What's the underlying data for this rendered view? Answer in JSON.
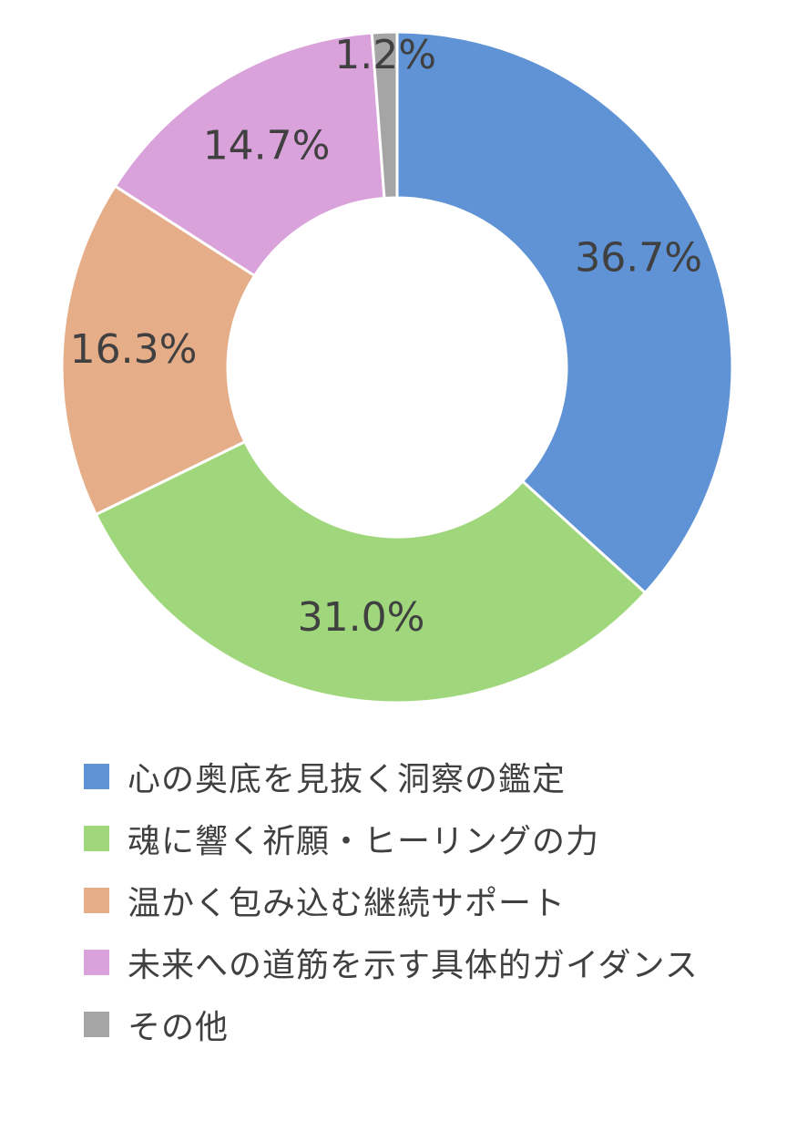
{
  "chart_data": {
    "type": "pie",
    "donut": true,
    "legend_position": "bottom",
    "slices": [
      {
        "name": "心の奥底を見抜く洞察の鑑定",
        "value": 36.7,
        "label": "36.7%",
        "color": "#5F93D5"
      },
      {
        "name": "魂に響く祈願・ヒーリングの力",
        "value": 31.0,
        "label": "31.0%",
        "color": "#A0D77C"
      },
      {
        "name": "温かく包み込む継続サポート",
        "value": 16.3,
        "label": "16.3%",
        "color": "#E6AD89"
      },
      {
        "name": "未来への道筋を示す具体的ガイダンス",
        "value": 14.7,
        "label": "14.7%",
        "color": "#D9A2DA"
      },
      {
        "name": "その他",
        "value": 1.2,
        "label": "1.2%",
        "color": "#A5A5A5"
      }
    ]
  }
}
